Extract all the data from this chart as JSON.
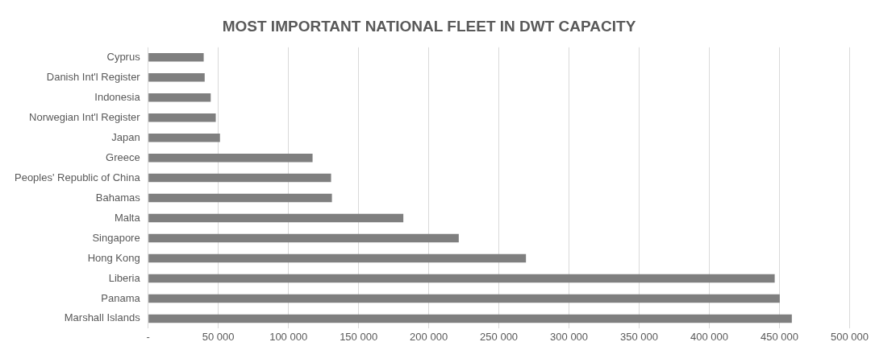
{
  "chart_data": {
    "type": "bar",
    "orientation": "horizontal",
    "title": "MOST IMPORTANT NATIONAL FLEET IN DWT CAPACITY",
    "categories": [
      "Cyprus",
      "Danish Int'l Register",
      "Indonesia",
      "Norwegian Int'l Register",
      "Japan",
      "Greece",
      "Peoples' Republic of China",
      "Bahamas",
      "Malta",
      "Singapore",
      "Hong Kong",
      "Liberia",
      "Panama",
      "Marshall Islands"
    ],
    "values": [
      39600,
      40300,
      44600,
      48200,
      51200,
      117200,
      130400,
      131000,
      181900,
      221400,
      269300,
      446600,
      450200,
      458800
    ],
    "color": "#7f7f7f",
    "xlim": [
      0,
      500000
    ],
    "xticks": [
      {
        "value": 0,
        "label": "-"
      },
      {
        "value": 50000,
        "label": "50 000"
      },
      {
        "value": 100000,
        "label": "100 000"
      },
      {
        "value": 150000,
        "label": "150 000"
      },
      {
        "value": 200000,
        "label": "200 000"
      },
      {
        "value": 250000,
        "label": "250 000"
      },
      {
        "value": 300000,
        "label": "300 000"
      },
      {
        "value": 350000,
        "label": "350 000"
      },
      {
        "value": 400000,
        "label": "400 000"
      },
      {
        "value": 450000,
        "label": "450 000"
      },
      {
        "value": 500000,
        "label": "500 000"
      }
    ],
    "grid": "x",
    "legend": false
  }
}
